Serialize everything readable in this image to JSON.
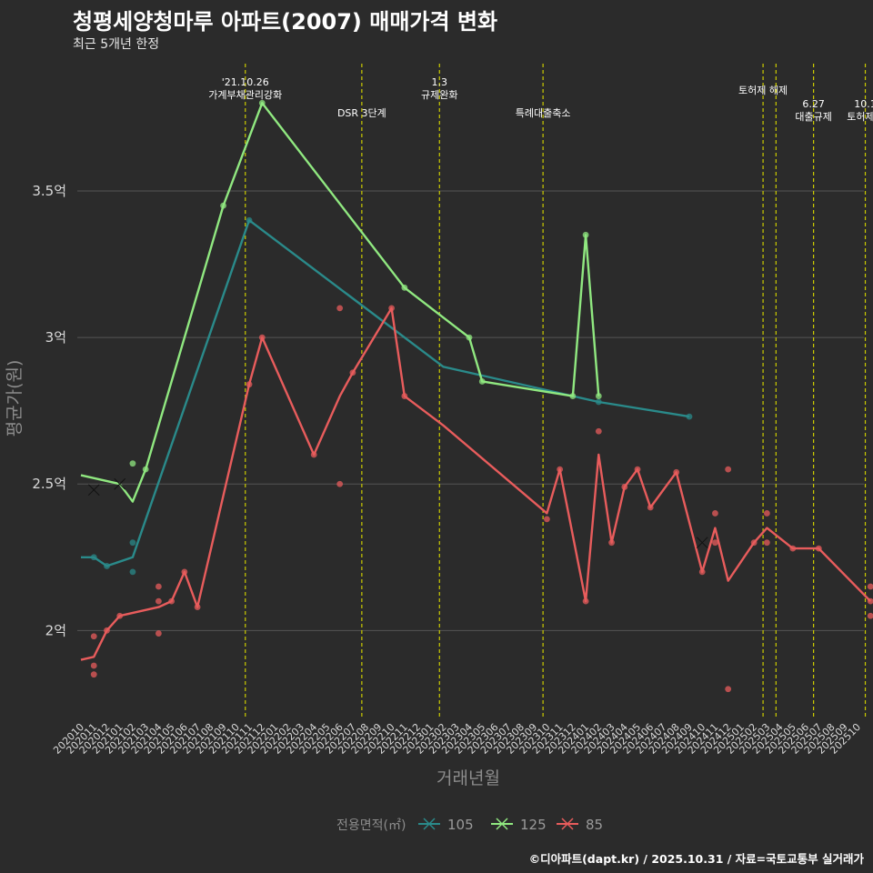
{
  "title": "청평세양청마루 아파트(2007) 매매가격 변화",
  "subtitle": "최근 5개년 한정",
  "caption": "©디아파트(dapt.kr) / 2025.10.31 / 자료=국토교통부 실거래가",
  "colors": {
    "background": "#2b2b2b",
    "grid": "#555555",
    "event_line": "#cccc00",
    "s105": "#2a8a8a",
    "s125": "#90e880",
    "s85": "#e85c5c"
  },
  "chart_data": {
    "type": "line",
    "title": "청평세양청마루 아파트(2007) 매매가격 변화",
    "xlabel": "거래년월",
    "ylabel": "평균가(원)",
    "ylim": [
      1.7,
      3.95
    ],
    "yticks": [
      {
        "value": 2.0,
        "label": "2억"
      },
      {
        "value": 2.5,
        "label": "2.5억"
      },
      {
        "value": 3.0,
        "label": "3억"
      },
      {
        "value": 3.5,
        "label": "3.5억"
      }
    ],
    "categories": [
      "202010",
      "202011",
      "202012",
      "202101",
      "202102",
      "202103",
      "202104",
      "202105",
      "202106",
      "202107",
      "202108",
      "202109",
      "202110",
      "202111",
      "202112",
      "202201",
      "202202",
      "202203",
      "202204",
      "202205",
      "202206",
      "202207",
      "202208",
      "202209",
      "202210",
      "202211",
      "202212",
      "202301",
      "202302",
      "202303",
      "202304",
      "202305",
      "202306",
      "202307",
      "202308",
      "202309",
      "202310",
      "202311",
      "202312",
      "202401",
      "202402",
      "202403",
      "202404",
      "202405",
      "202406",
      "202407",
      "202408",
      "202409",
      "202410",
      "202411",
      "202412",
      "202501",
      "202502",
      "202503",
      "202504",
      "202505",
      "202506",
      "202507",
      "202508",
      "202509",
      "202510"
    ],
    "events": [
      {
        "x": 12.7,
        "lines": [
          "'21.10.26",
          "가계부채관리강화"
        ],
        "row": 0
      },
      {
        "x": 21.7,
        "lines": [
          "DSR 3단계"
        ],
        "row": 2
      },
      {
        "x": 27.7,
        "lines": [
          "1.3",
          "규제완화"
        ],
        "row": 0
      },
      {
        "x": 35.7,
        "lines": [
          "특례대출축소"
        ],
        "row": 2
      },
      {
        "x": 52.7,
        "lines": [
          "토허제 해제"
        ],
        "row": 1
      },
      {
        "x": 53.7,
        "lines": [],
        "row": 1
      },
      {
        "x": 56.6,
        "lines": [
          "6.27",
          "대출규제"
        ],
        "row": 3
      },
      {
        "x": 60.6,
        "lines": [
          "10.1",
          "토허제확"
        ],
        "row": 3
      }
    ],
    "legend_title": "전용면적(㎡)",
    "series": [
      {
        "name": "105",
        "color": "#2a8a8a",
        "line": [
          [
            0,
            2.25
          ],
          [
            1,
            2.25
          ],
          [
            2,
            2.22
          ],
          [
            4,
            2.25
          ],
          [
            13,
            3.4
          ],
          [
            28,
            2.9
          ],
          [
            40,
            2.78
          ],
          [
            47,
            2.73
          ]
        ],
        "points": [
          [
            1,
            2.25
          ],
          [
            2,
            2.22
          ],
          [
            4,
            2.3
          ],
          [
            4,
            2.2
          ],
          [
            13,
            3.4
          ],
          [
            40,
            2.78
          ],
          [
            47,
            2.73
          ]
        ],
        "cross": [
          [
            1,
            2.48
          ]
        ]
      },
      {
        "name": "125",
        "color": "#90e880",
        "line": [
          [
            0,
            2.53
          ],
          [
            3,
            2.5
          ],
          [
            4,
            2.44
          ],
          [
            5,
            2.55
          ],
          [
            11,
            3.45
          ],
          [
            14,
            3.8
          ],
          [
            25,
            3.17
          ],
          [
            30,
            3.0
          ],
          [
            31,
            2.85
          ],
          [
            38,
            2.8
          ],
          [
            39,
            3.35
          ],
          [
            40,
            2.8
          ]
        ],
        "points": [
          [
            4,
            2.57
          ],
          [
            5,
            2.55
          ],
          [
            11,
            3.45
          ],
          [
            14,
            3.8
          ],
          [
            25,
            3.17
          ],
          [
            30,
            3.0
          ],
          [
            31,
            2.85
          ],
          [
            38,
            2.8
          ],
          [
            39,
            3.35
          ],
          [
            40,
            2.8
          ]
        ],
        "cross": [
          [
            3,
            2.5
          ]
        ]
      },
      {
        "name": "85",
        "color": "#e85c5c",
        "line": [
          [
            0,
            1.9
          ],
          [
            1,
            1.91
          ],
          [
            2,
            2.0
          ],
          [
            3,
            2.05
          ],
          [
            6,
            2.08
          ],
          [
            7,
            2.1
          ],
          [
            8,
            2.2
          ],
          [
            9,
            2.08
          ],
          [
            13,
            2.84
          ],
          [
            14,
            3.0
          ],
          [
            18,
            2.6
          ],
          [
            20,
            2.8
          ],
          [
            21,
            2.88
          ],
          [
            24,
            3.1
          ],
          [
            25,
            2.8
          ],
          [
            28,
            2.7
          ],
          [
            36,
            2.4
          ],
          [
            37,
            2.55
          ],
          [
            39,
            2.1
          ],
          [
            40,
            2.6
          ],
          [
            41,
            2.3
          ],
          [
            42,
            2.49
          ],
          [
            43,
            2.55
          ],
          [
            44,
            2.42
          ],
          [
            46,
            2.54
          ],
          [
            48,
            2.2
          ],
          [
            49,
            2.35
          ],
          [
            50,
            2.17
          ],
          [
            52,
            2.3
          ],
          [
            53,
            2.35
          ],
          [
            55,
            2.28
          ],
          [
            57,
            2.28
          ],
          [
            61,
            2.1
          ]
        ],
        "points": [
          [
            1,
            1.98
          ],
          [
            1,
            1.88
          ],
          [
            1,
            1.85
          ],
          [
            2,
            2.0
          ],
          [
            3,
            2.05
          ],
          [
            6,
            2.15
          ],
          [
            6,
            2.1
          ],
          [
            6,
            1.99
          ],
          [
            7,
            2.1
          ],
          [
            8,
            2.2
          ],
          [
            9,
            2.08
          ],
          [
            13,
            2.84
          ],
          [
            14,
            3.0
          ],
          [
            18,
            2.6
          ],
          [
            20,
            3.1
          ],
          [
            20,
            2.5
          ],
          [
            21,
            2.88
          ],
          [
            24,
            3.1
          ],
          [
            25,
            2.8
          ],
          [
            36,
            2.38
          ],
          [
            37,
            2.55
          ],
          [
            39,
            2.1
          ],
          [
            40,
            2.68
          ],
          [
            41,
            2.3
          ],
          [
            42,
            2.49
          ],
          [
            43,
            2.55
          ],
          [
            44,
            2.42
          ],
          [
            46,
            2.54
          ],
          [
            48,
            2.2
          ],
          [
            49,
            2.4
          ],
          [
            49,
            2.3
          ],
          [
            50,
            2.55
          ],
          [
            50,
            1.8
          ],
          [
            52,
            2.3
          ],
          [
            53,
            2.4
          ],
          [
            53,
            2.3
          ],
          [
            55,
            2.28
          ],
          [
            57,
            2.28
          ],
          [
            61,
            2.15
          ],
          [
            61,
            2.1
          ],
          [
            61,
            2.05
          ]
        ],
        "cross": [
          [
            48,
            2.3
          ]
        ]
      }
    ]
  }
}
